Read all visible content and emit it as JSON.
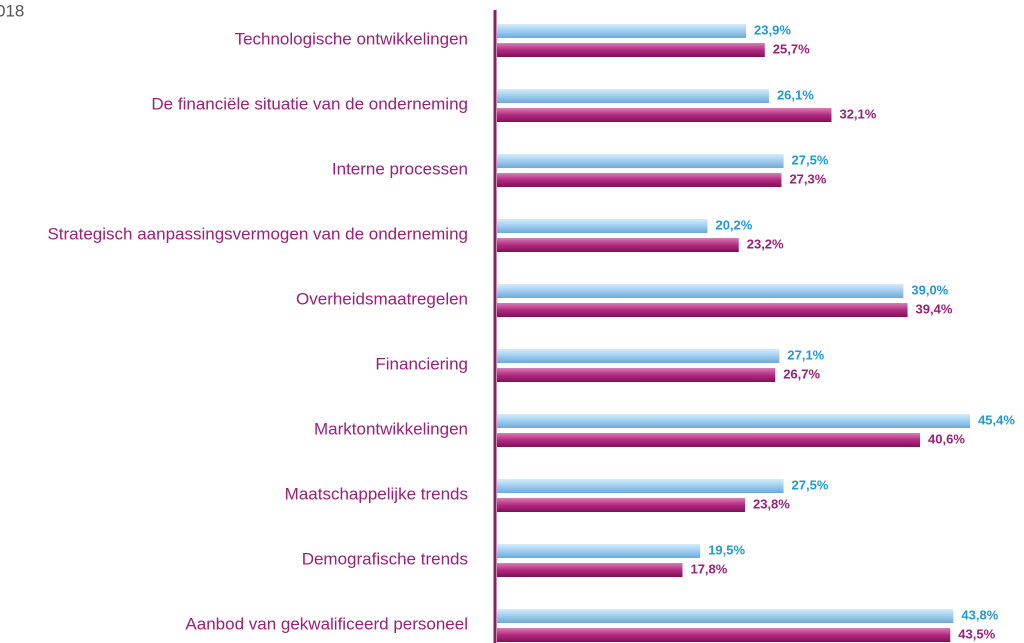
{
  "chart_data": {
    "type": "bar",
    "orientation": "horizontal",
    "annotation": "018",
    "categories": [
      "Technologische ontwikkelingen",
      "De financiële situatie van de onderneming",
      "Interne processen",
      "Strategisch aanpassingsvermogen van de onderneming",
      "Overheidsmaatregelen",
      "Financiering",
      "Marktontwikkelingen",
      "Maatschappelijke trends",
      "Demografische trends",
      "Aanbod van gekwalificeerd personeel"
    ],
    "series": [
      {
        "color": "#9fcdf0",
        "label_color": "#1e9ad6",
        "values": [
          23.9,
          26.1,
          27.5,
          20.2,
          39.0,
          27.1,
          45.4,
          27.5,
          19.5,
          43.8
        ],
        "value_labels": [
          "23,9%",
          "26,1%",
          "27,5%",
          "20,2%",
          "39,0%",
          "27,1%",
          "45,4%",
          "27,5%",
          "19,5%",
          "43,8%"
        ]
      },
      {
        "color": "#b42a80",
        "label_color": "#9c1f7a",
        "values": [
          25.7,
          32.1,
          27.3,
          23.2,
          39.4,
          26.7,
          40.6,
          23.8,
          17.8,
          43.5
        ],
        "value_labels": [
          "25,7%",
          "32,1%",
          "27,3%",
          "23,2%",
          "39,4%",
          "26,7%",
          "40,6%",
          "23,8%",
          "17,8%",
          "43,5%"
        ]
      }
    ]
  }
}
